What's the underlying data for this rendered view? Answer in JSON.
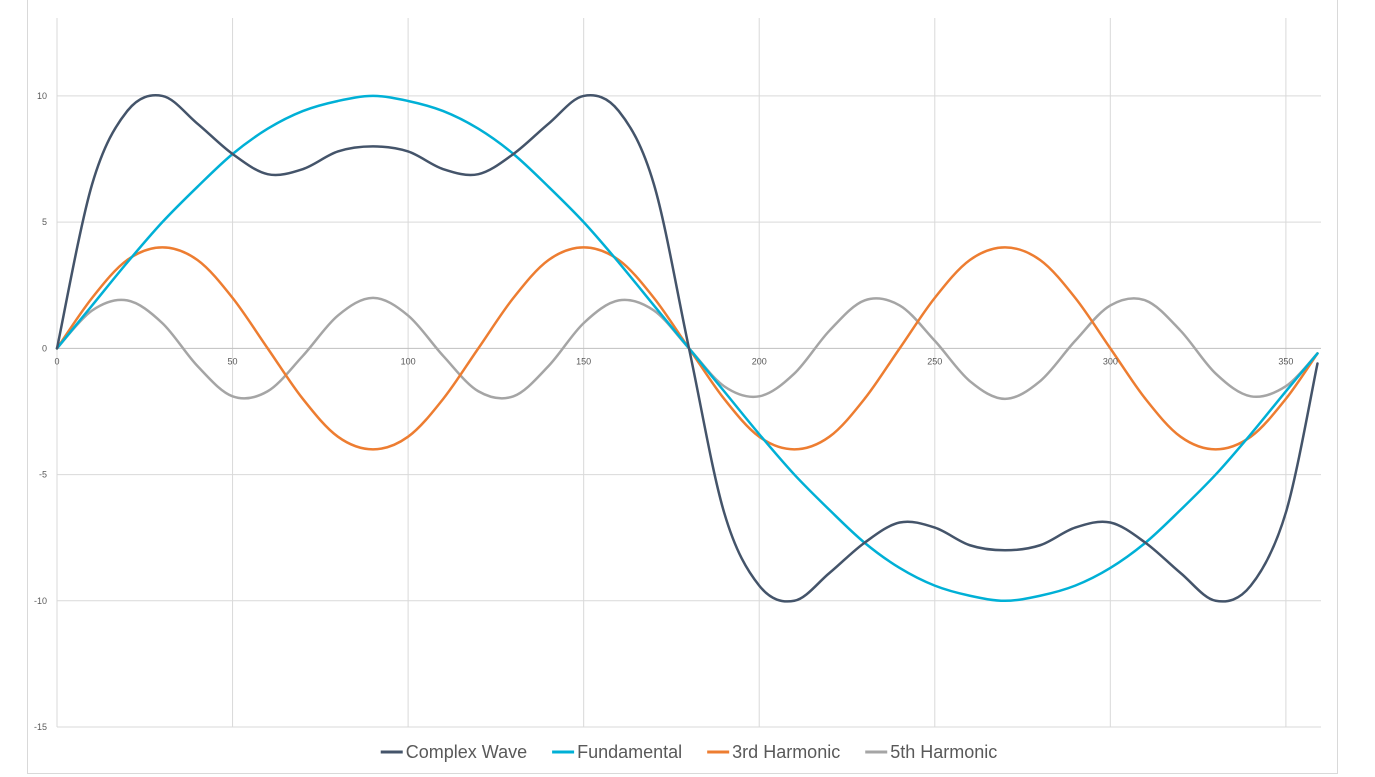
{
  "chart_data": {
    "type": "line",
    "title": "",
    "xlabel": "",
    "ylabel": "",
    "xlim": [
      0,
      360
    ],
    "ylim": [
      -15,
      10
    ],
    "x_ticks": [
      0,
      50,
      100,
      150,
      200,
      250,
      300,
      350
    ],
    "y_ticks": [
      10,
      5,
      0,
      -5,
      -10,
      -15
    ],
    "grid": true,
    "legend_position": "bottom",
    "x": [
      0,
      10,
      20,
      30,
      40,
      50,
      60,
      70,
      80,
      90,
      100,
      110,
      120,
      130,
      140,
      150,
      160,
      170,
      180,
      190,
      200,
      210,
      220,
      230,
      240,
      250,
      260,
      270,
      280,
      290,
      300,
      310,
      320,
      330,
      340,
      350,
      359
    ],
    "series": [
      {
        "name": "Complex Wave",
        "color": "#44546a",
        "values": [
          0,
          6.5,
          9.4,
          10,
          8.9,
          7.7,
          6.9,
          7.1,
          7.8,
          8,
          7.8,
          7.1,
          6.9,
          7.7,
          8.9,
          10,
          9.4,
          6.5,
          0,
          -6.5,
          -9.4,
          -10,
          -8.9,
          -7.7,
          -6.9,
          -7.1,
          -7.8,
          -8,
          -7.8,
          -7.1,
          -6.9,
          -7.7,
          -8.9,
          -10,
          -9.4,
          -6.5,
          -0.6
        ]
      },
      {
        "name": "Fundamental",
        "color": "#00b0d6",
        "values": [
          0,
          1.7,
          3.4,
          5,
          6.4,
          7.7,
          8.7,
          9.4,
          9.8,
          10,
          9.8,
          9.4,
          8.7,
          7.7,
          6.4,
          5,
          3.4,
          1.7,
          0,
          -1.7,
          -3.4,
          -5,
          -6.4,
          -7.7,
          -8.7,
          -9.4,
          -9.8,
          -10,
          -9.8,
          -9.4,
          -8.7,
          -7.7,
          -6.4,
          -5,
          -3.4,
          -1.7,
          -0.2
        ]
      },
      {
        "name": "3rd Harmonic",
        "color": "#ed7d31",
        "values": [
          0,
          2,
          3.5,
          4,
          3.5,
          2,
          0,
          -2,
          -3.5,
          -4,
          -3.5,
          -2,
          0,
          2,
          3.5,
          4,
          3.5,
          2,
          0,
          -2,
          -3.5,
          -4,
          -3.5,
          -2,
          0,
          2,
          3.5,
          4,
          3.5,
          2,
          0,
          -2,
          -3.5,
          -4,
          -3.5,
          -2,
          -0.2
        ]
      },
      {
        "name": "5th Harmonic",
        "color": "#a5a5a5",
        "values": [
          0,
          1.5,
          1.9,
          1,
          -0.7,
          -1.9,
          -1.7,
          -0.3,
          1.3,
          2,
          1.3,
          -0.3,
          -1.7,
          -1.9,
          -0.7,
          1,
          1.9,
          1.5,
          0,
          -1.5,
          -1.9,
          -1,
          0.7,
          1.9,
          1.7,
          0.3,
          -1.3,
          -2,
          -1.3,
          0.3,
          1.7,
          1.9,
          0.7,
          -1,
          -1.9,
          -1.5,
          -0.2
        ]
      }
    ]
  }
}
